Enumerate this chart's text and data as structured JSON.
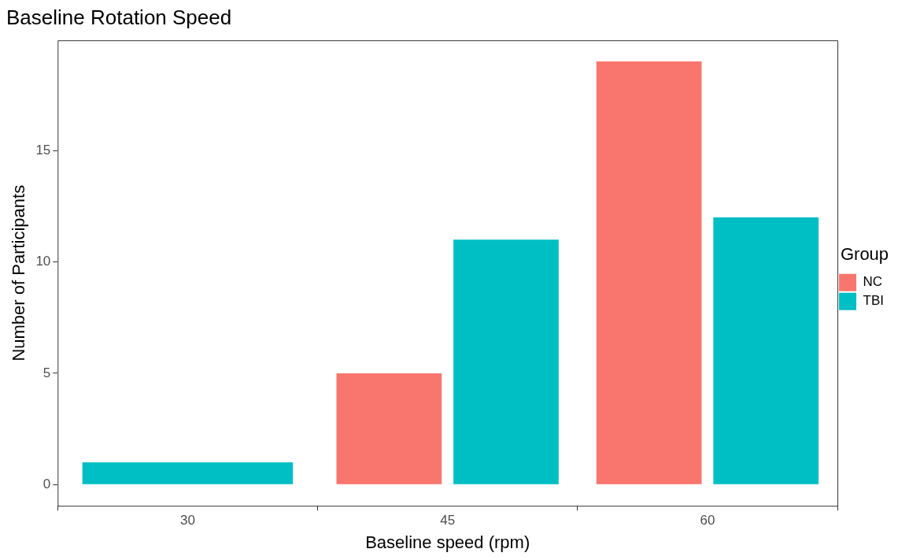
{
  "chart_data": {
    "type": "bar",
    "title": "Baseline Rotation Speed",
    "xlabel": "Baseline speed (rpm)",
    "ylabel": "Number of Participants",
    "legend_title": "Group",
    "categories": [
      "30",
      "45",
      "60"
    ],
    "series": [
      {
        "name": "NC",
        "color": "#f8766d",
        "values": [
          null,
          5,
          19
        ]
      },
      {
        "name": "TBI",
        "color": "#00bfc4",
        "values": [
          1,
          11,
          12
        ]
      }
    ],
    "ylim": [
      -0.95,
      19.95
    ],
    "yticks": [
      0,
      5,
      10,
      15
    ],
    "grid": false,
    "legend": "right"
  }
}
